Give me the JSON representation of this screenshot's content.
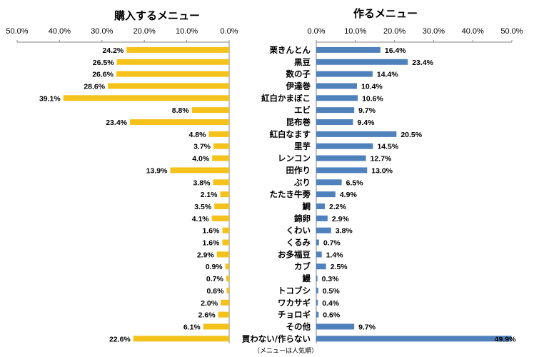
{
  "chart_data": [
    {
      "type": "bar",
      "orientation": "horizontal",
      "direction": "right-to-left",
      "title": "購入するメニュー",
      "xlim": [
        0,
        50
      ],
      "tick_labels": [
        "50.0%",
        "40.0%",
        "30.0%",
        "20.0%",
        "10.0%",
        "0.0%"
      ],
      "color": "#F5C21B",
      "categories": [
        "栗きんとん",
        "黒豆",
        "数の子",
        "伊達巻",
        "紅白かまぼこ",
        "エビ",
        "昆布巻",
        "紅白なます",
        "里芋",
        "レンコン",
        "田作り",
        "ぶり",
        "たたき牛蒡",
        "鯛",
        "錦卵",
        "くわい",
        "くるみ",
        "お多福豆",
        "カブ",
        "鰻",
        "トコブシ",
        "ワカサギ",
        "チョロギ",
        "その他",
        "買わない/作らない"
      ],
      "values": [
        24.2,
        26.5,
        26.6,
        28.6,
        39.1,
        8.8,
        23.4,
        4.8,
        3.7,
        4.0,
        13.9,
        3.8,
        2.1,
        3.5,
        4.1,
        1.6,
        1.6,
        2.9,
        0.9,
        0.7,
        0.6,
        2.0,
        2.6,
        6.1,
        22.6
      ],
      "value_labels": [
        "24.2%",
        "26.5%",
        "26.6%",
        "28.6%",
        "39.1%",
        "8.8%",
        "23.4%",
        "4.8%",
        "3.7%",
        "4.0%",
        "13.9%",
        "3.8%",
        "2.1%",
        "3.5%",
        "4.1%",
        "1.6%",
        "1.6%",
        "2.9%",
        "0.9%",
        "0.7%",
        "0.6%",
        "2.0%",
        "2.6%",
        "6.1%",
        "22.6%"
      ]
    },
    {
      "type": "bar",
      "orientation": "horizontal",
      "direction": "left-to-right",
      "title": "作るメニュー",
      "xlim": [
        0,
        50
      ],
      "tick_labels": [
        "0.0%",
        "10.0%",
        "20.0%",
        "30.0%",
        "40.0%",
        "50.0%"
      ],
      "color": "#4F81BD",
      "categories": [
        "栗きんとん",
        "黒豆",
        "数の子",
        "伊達巻",
        "紅白かまぼこ",
        "エビ",
        "昆布巻",
        "紅白なます",
        "里芋",
        "レンコン",
        "田作り",
        "ぶり",
        "たたき牛蒡",
        "鯛",
        "錦卵",
        "くわい",
        "くるみ",
        "お多福豆",
        "カブ",
        "鰻",
        "トコブシ",
        "ワカサギ",
        "チョロギ",
        "その他",
        "買わない/作らない"
      ],
      "values": [
        16.4,
        23.4,
        14.4,
        10.4,
        10.6,
        9.7,
        9.4,
        20.5,
        14.5,
        12.7,
        13.0,
        6.5,
        4.9,
        2.2,
        2.9,
        3.8,
        0.7,
        1.4,
        2.5,
        0.3,
        0.5,
        0.4,
        0.6,
        9.7,
        49.9
      ],
      "value_labels": [
        "16.4%",
        "23.4%",
        "14.4%",
        "10.4%",
        "10.6%",
        "9.7%",
        "9.4%",
        "20.5%",
        "14.5%",
        "12.7%",
        "13.0%",
        "6.5%",
        "4.9%",
        "2.2%",
        "2.9%",
        "3.8%",
        "0.7%",
        "1.4%",
        "2.5%",
        "0.3%",
        "0.5%",
        "0.4%",
        "0.6%",
        "9.7%",
        "49.9%"
      ]
    }
  ],
  "footnote": "（メニューは人気順）"
}
